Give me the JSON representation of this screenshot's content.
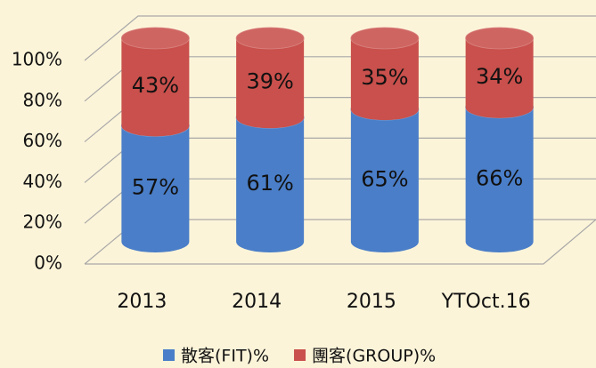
{
  "chart_data": {
    "type": "bar",
    "stacked": true,
    "categories": [
      "2013",
      "2014",
      "2015",
      "YTOct.16"
    ],
    "series": [
      {
        "name": "散客(FIT)%",
        "color": "#4a7ec8",
        "values": [
          57,
          61,
          65,
          66
        ],
        "value_labels": [
          "57%",
          "61%",
          "65%",
          "66%"
        ]
      },
      {
        "name": "團客(GROUP)%",
        "color": "#c9504c",
        "values": [
          43,
          39,
          35,
          34
        ],
        "value_labels": [
          "43%",
          "39%",
          "35%",
          "34%"
        ]
      }
    ],
    "ylim": [
      0,
      100
    ],
    "yticks": [
      {
        "value": 0,
        "label": "0%"
      },
      {
        "value": 20,
        "label": "20%"
      },
      {
        "value": 40,
        "label": "40%"
      },
      {
        "value": 60,
        "label": "60%"
      },
      {
        "value": 80,
        "label": "80%"
      },
      {
        "value": 100,
        "label": "100%"
      }
    ],
    "grid": true
  }
}
